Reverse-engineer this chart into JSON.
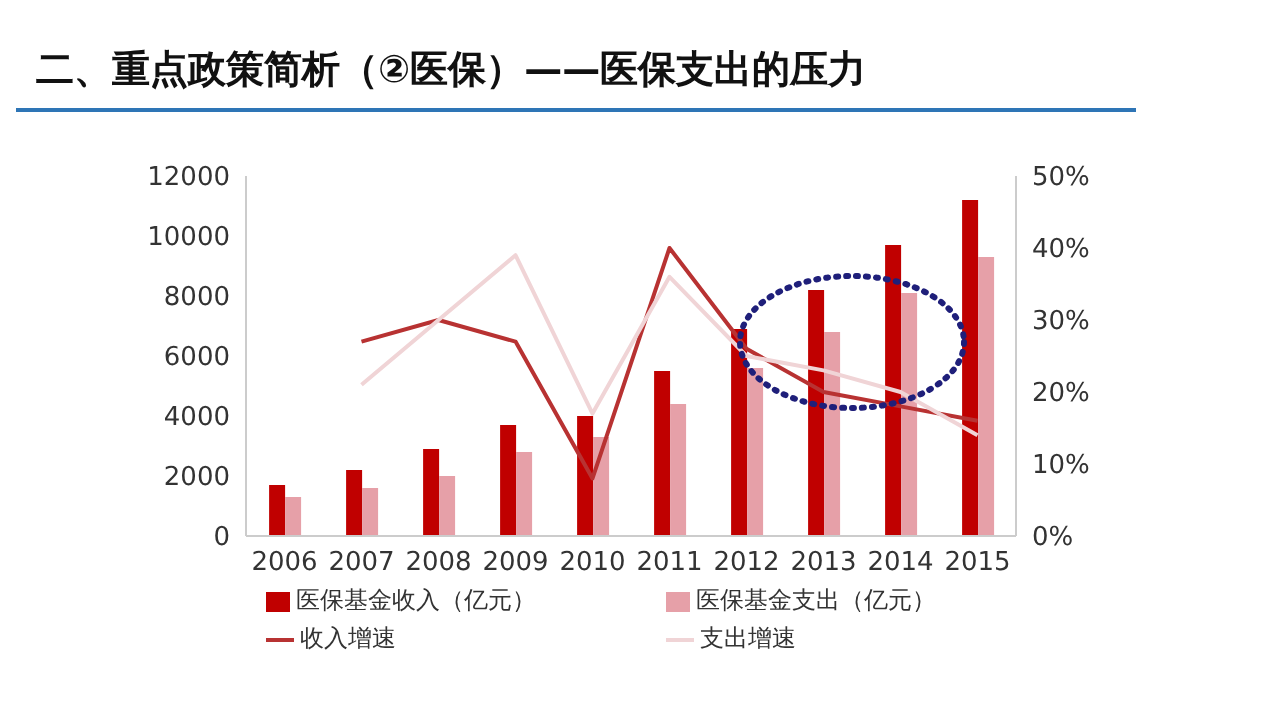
{
  "chart_data": {
    "type": "bar",
    "title": "二、重点政策简析（②医保）——医保支出的压力",
    "categories": [
      "2006",
      "2007",
      "2008",
      "2009",
      "2010",
      "2011",
      "2012",
      "2013",
      "2014",
      "2015"
    ],
    "series": [
      {
        "name": "医保基金收入（亿元）",
        "color": "#c00000",
        "values": [
          1700,
          2200,
          2900,
          3700,
          4000,
          5500,
          6900,
          8200,
          9700,
          11200
        ]
      },
      {
        "name": "医保基金支出（亿元）",
        "color": "#e6a0a8",
        "values": [
          1300,
          1600,
          2000,
          2800,
          3300,
          4400,
          5600,
          6800,
          8100,
          9300
        ]
      },
      {
        "name": "收入增速",
        "type": "line",
        "axis": "y2",
        "color": "#b83232",
        "values": [
          null,
          27,
          30,
          27,
          8,
          40,
          26,
          20,
          18,
          16
        ]
      },
      {
        "name": "支出增速",
        "type": "line",
        "axis": "y2",
        "color": "#f0d4d6",
        "values": [
          null,
          21,
          30,
          39,
          17,
          36,
          25,
          23,
          20,
          14
        ]
      }
    ],
    "ylim": [
      0,
      12000
    ],
    "yticks": [
      0,
      2000,
      4000,
      6000,
      8000,
      10000,
      12000
    ],
    "y2lim": [
      0,
      50
    ],
    "y2ticks": [
      {
        "value": 0,
        "label": "0%"
      },
      {
        "value": 10,
        "label": "10%"
      },
      {
        "value": 20,
        "label": "20%"
      },
      {
        "value": 30,
        "label": "30%"
      },
      {
        "value": 40,
        "label": "40%"
      },
      {
        "value": 50,
        "label": "50%"
      }
    ],
    "legend": "bottom",
    "marker": "none",
    "line_style": "solid",
    "grid": false
  }
}
